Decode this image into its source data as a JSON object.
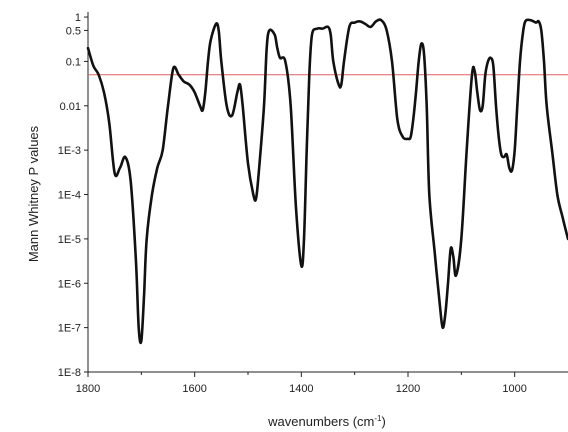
{
  "chart_data": {
    "type": "line",
    "xlabel": "wavenumbers (cm",
    "xlabel_sup": "-1",
    "xlabel_end": ")",
    "ylabel": "Mann Whitney P values",
    "x_reversed": true,
    "y_scale": "log",
    "xlim": [
      1800,
      900
    ],
    "ylim": [
      1e-08,
      1.3
    ],
    "x_ticks": [
      1800,
      1600,
      1400,
      1200,
      1000
    ],
    "y_ticks": [
      {
        "value": 1,
        "label": "1"
      },
      {
        "value": 0.5,
        "label": "0.5"
      },
      {
        "value": 0.1,
        "label": "0.1"
      },
      {
        "value": 0.01,
        "label": "0.01"
      },
      {
        "value": 0.001,
        "label": "1E-3"
      },
      {
        "value": 0.0001,
        "label": "1E-4"
      },
      {
        "value": 1e-05,
        "label": "1E-5"
      },
      {
        "value": 1e-06,
        "label": "1E-6"
      },
      {
        "value": 1e-07,
        "label": "1E-7"
      },
      {
        "value": 1e-08,
        "label": "1E-8"
      }
    ],
    "threshold": {
      "value": 0.05,
      "color": "#e06060"
    },
    "grid": false,
    "series_color": "#111111",
    "series": [
      {
        "values": [
          [
            1800,
            0.2
          ],
          [
            1790,
            0.08
          ],
          [
            1780,
            0.05
          ],
          [
            1770,
            0.02
          ],
          [
            1760,
            0.004
          ],
          [
            1750,
            0.0003
          ],
          [
            1740,
            0.0004
          ],
          [
            1730,
            0.0007
          ],
          [
            1720,
            0.0002
          ],
          [
            1710,
            3e-06
          ],
          [
            1705,
            1e-07
          ],
          [
            1700,
            5e-08
          ],
          [
            1695,
            5e-07
          ],
          [
            1690,
            1e-05
          ],
          [
            1680,
            0.0001
          ],
          [
            1670,
            0.0004
          ],
          [
            1660,
            0.001
          ],
          [
            1650,
            0.01
          ],
          [
            1640,
            0.07
          ],
          [
            1630,
            0.05
          ],
          [
            1620,
            0.035
          ],
          [
            1610,
            0.03
          ],
          [
            1600,
            0.02
          ],
          [
            1590,
            0.01
          ],
          [
            1585,
            0.008
          ],
          [
            1580,
            0.02
          ],
          [
            1575,
            0.1
          ],
          [
            1570,
            0.3
          ],
          [
            1560,
            0.7
          ],
          [
            1555,
            0.5
          ],
          [
            1550,
            0.1
          ],
          [
            1540,
            0.01
          ],
          [
            1530,
            0.006
          ],
          [
            1520,
            0.02
          ],
          [
            1515,
            0.03
          ],
          [
            1510,
            0.01
          ],
          [
            1500,
            0.0005
          ],
          [
            1490,
            0.0001
          ],
          [
            1485,
            8e-05
          ],
          [
            1480,
            0.0003
          ],
          [
            1470,
            0.01
          ],
          [
            1465,
            0.2
          ],
          [
            1460,
            0.5
          ],
          [
            1450,
            0.4
          ],
          [
            1445,
            0.2
          ],
          [
            1440,
            0.12
          ],
          [
            1430,
            0.1
          ],
          [
            1420,
            0.01
          ],
          [
            1410,
            5e-05
          ],
          [
            1400,
            2.5e-06
          ],
          [
            1395,
            1e-05
          ],
          [
            1390,
            0.001
          ],
          [
            1385,
            0.05
          ],
          [
            1380,
            0.4
          ],
          [
            1370,
            0.55
          ],
          [
            1360,
            0.55
          ],
          [
            1350,
            0.6
          ],
          [
            1345,
            0.4
          ],
          [
            1340,
            0.1
          ],
          [
            1330,
            0.03
          ],
          [
            1325,
            0.03
          ],
          [
            1320,
            0.1
          ],
          [
            1310,
            0.6
          ],
          [
            1300,
            0.75
          ],
          [
            1290,
            0.8
          ],
          [
            1280,
            0.7
          ],
          [
            1270,
            0.6
          ],
          [
            1260,
            0.8
          ],
          [
            1250,
            0.85
          ],
          [
            1240,
            0.5
          ],
          [
            1230,
            0.1
          ],
          [
            1220,
            0.005
          ],
          [
            1210,
            0.002
          ],
          [
            1200,
            0.0018
          ],
          [
            1195,
            0.002
          ],
          [
            1190,
            0.005
          ],
          [
            1185,
            0.02
          ],
          [
            1180,
            0.1
          ],
          [
            1175,
            0.25
          ],
          [
            1170,
            0.15
          ],
          [
            1165,
            0.01
          ],
          [
            1160,
            0.0001
          ],
          [
            1150,
            5e-06
          ],
          [
            1140,
            3e-07
          ],
          [
            1135,
            1e-07
          ],
          [
            1130,
            2e-07
          ],
          [
            1125,
            1e-06
          ],
          [
            1120,
            6e-06
          ],
          [
            1115,
            4e-06
          ],
          [
            1110,
            1.5e-06
          ],
          [
            1100,
            1e-05
          ],
          [
            1090,
            0.001
          ],
          [
            1080,
            0.05
          ],
          [
            1075,
            0.06
          ],
          [
            1070,
            0.02
          ],
          [
            1065,
            0.008
          ],
          [
            1060,
            0.01
          ],
          [
            1055,
            0.05
          ],
          [
            1050,
            0.1
          ],
          [
            1045,
            0.12
          ],
          [
            1040,
            0.08
          ],
          [
            1035,
            0.01
          ],
          [
            1030,
            0.002
          ],
          [
            1025,
            0.0008
          ],
          [
            1020,
            0.0007
          ],
          [
            1015,
            0.0008
          ],
          [
            1010,
            0.0004
          ],
          [
            1005,
            0.00035
          ],
          [
            1000,
            0.001
          ],
          [
            995,
            0.01
          ],
          [
            990,
            0.1
          ],
          [
            985,
            0.4
          ],
          [
            980,
            0.8
          ],
          [
            970,
            0.85
          ],
          [
            960,
            0.75
          ],
          [
            955,
            0.8
          ],
          [
            950,
            0.5
          ],
          [
            945,
            0.1
          ],
          [
            940,
            0.01
          ],
          [
            930,
            0.001
          ],
          [
            920,
            0.0001
          ],
          [
            910,
            3e-05
          ],
          [
            900,
            1e-05
          ]
        ]
      }
    ]
  }
}
